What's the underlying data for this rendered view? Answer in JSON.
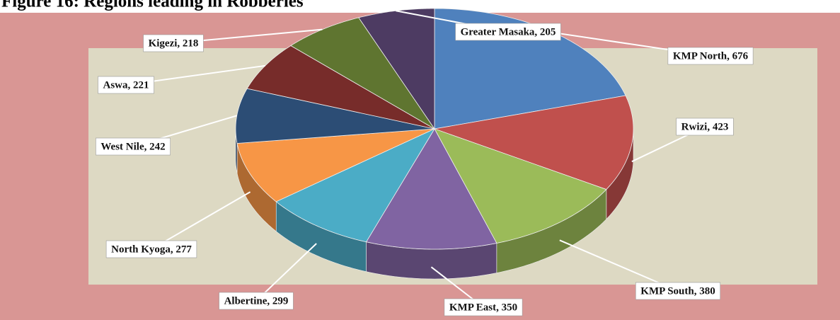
{
  "chart_data": {
    "type": "pie",
    "title": "Figure 16: Regions leading in Robberies",
    "values": [
      676,
      423,
      380,
      350,
      299,
      277,
      242,
      221,
      218,
      205
    ],
    "value_labels": [
      "KMP North, 676",
      "Rwizi, 423",
      "KMP South, 380",
      "KMP East, 350",
      "Albertine, 299",
      "North Kyoga, 277",
      "West Nile, 242",
      "Aswa, 221",
      "Kigezi, 218",
      "Greater Masaka, 205"
    ],
    "colors": [
      "#4f81bd",
      "#c0504d",
      "#9bbb59",
      "#8064a2",
      "#4bacc6",
      "#f79646",
      "#2c4d75",
      "#772c2a",
      "#5f7530",
      "#4d3b62"
    ]
  }
}
